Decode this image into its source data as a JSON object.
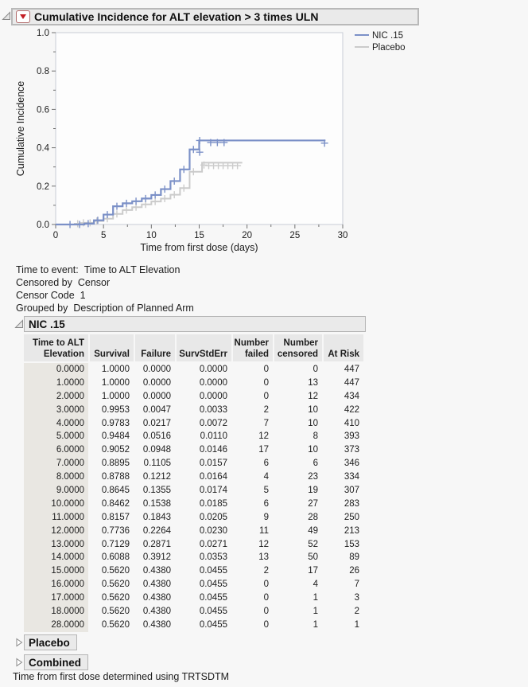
{
  "header": {
    "title": "Cumulative Incidence for ALT elevation > 3 times ULN"
  },
  "chart_data": {
    "type": "line",
    "subtype": "step-survival",
    "xlabel": "Time from first dose (days)",
    "ylabel": "Cumulative Incidence",
    "xlim": [
      0,
      30
    ],
    "ylim": [
      0.0,
      1.0
    ],
    "xticks": [
      0,
      5,
      10,
      15,
      20,
      25,
      30
    ],
    "yticks": [
      0.0,
      0.2,
      0.4,
      0.6,
      0.8,
      1.0
    ],
    "grid": false,
    "legend_position": "top-right",
    "series": [
      {
        "name": "Placebo",
        "color": "#cbcbcb",
        "width": 2,
        "step_points": [
          [
            0,
            0
          ],
          [
            2,
            0.004
          ],
          [
            3,
            0.009
          ],
          [
            4,
            0.018
          ],
          [
            5,
            0.03
          ],
          [
            6,
            0.055
          ],
          [
            7,
            0.075
          ],
          [
            8,
            0.09
          ],
          [
            9,
            0.105
          ],
          [
            10,
            0.12
          ],
          [
            11,
            0.135
          ],
          [
            12,
            0.155
          ],
          [
            13,
            0.19
          ],
          [
            14,
            0.275
          ],
          [
            15.3,
            0.322
          ],
          [
            19.5,
            0.322
          ]
        ],
        "censor_marks": [
          [
            2.3,
            0.004
          ],
          [
            2.9,
            0.009
          ],
          [
            3.6,
            0.009
          ],
          [
            4.3,
            0.018
          ],
          [
            5.4,
            0.03
          ],
          [
            6.4,
            0.055
          ],
          [
            7.4,
            0.075
          ],
          [
            8.4,
            0.09
          ],
          [
            9.4,
            0.105
          ],
          [
            10.4,
            0.12
          ],
          [
            11.4,
            0.135
          ],
          [
            12.4,
            0.155
          ],
          [
            13.4,
            0.19
          ],
          [
            14.4,
            0.275
          ],
          [
            15.5,
            0.31
          ],
          [
            16,
            0.307
          ],
          [
            16.5,
            0.307
          ],
          [
            17,
            0.307
          ],
          [
            17.5,
            0.307
          ],
          [
            18,
            0.307
          ],
          [
            18.5,
            0.307
          ],
          [
            19,
            0.307
          ]
        ]
      },
      {
        "name": "NIC .15",
        "color": "#7b90c7",
        "width": 2.2,
        "step_points": [
          [
            0,
            0
          ],
          [
            3,
            0.0047
          ],
          [
            4,
            0.0217
          ],
          [
            5,
            0.0516
          ],
          [
            6,
            0.0948
          ],
          [
            7,
            0.1105
          ],
          [
            8,
            0.1212
          ],
          [
            9,
            0.1355
          ],
          [
            10,
            0.1538
          ],
          [
            11,
            0.1843
          ],
          [
            12,
            0.2264
          ],
          [
            13,
            0.2871
          ],
          [
            14,
            0.3912
          ],
          [
            15,
            0.438
          ],
          [
            28.2,
            0.438
          ]
        ],
        "censor_marks": [
          [
            1.5,
            0
          ],
          [
            2.5,
            0
          ],
          [
            3.4,
            0.0047
          ],
          [
            4.4,
            0.0217
          ],
          [
            5.4,
            0.0516
          ],
          [
            6.4,
            0.0948
          ],
          [
            7.4,
            0.1105
          ],
          [
            8.4,
            0.1212
          ],
          [
            9.4,
            0.1355
          ],
          [
            10.4,
            0.1538
          ],
          [
            11.4,
            0.1843
          ],
          [
            12.4,
            0.2264
          ],
          [
            13.4,
            0.2871
          ],
          [
            14.4,
            0.3912
          ],
          [
            15.05,
            0.438
          ],
          [
            15.05,
            0.377
          ],
          [
            16.2,
            0.427
          ],
          [
            16.9,
            0.427
          ],
          [
            17.6,
            0.427
          ],
          [
            28.1,
            0.424
          ]
        ]
      }
    ],
    "legend": [
      "NIC .15",
      "Placebo"
    ]
  },
  "info": {
    "lines": [
      {
        "label": "Time to event:",
        "value": "Time to ALT Elevation"
      },
      {
        "label": "Censored by",
        "value": "Censor"
      },
      {
        "label": "Censor Code",
        "value": "1"
      },
      {
        "label": "Grouped by",
        "value": "Description of Planned Arm"
      }
    ]
  },
  "nic_section": {
    "title": "NIC .15",
    "table": {
      "columns": [
        {
          "line1": "Time to ALT",
          "line2": "Elevation"
        },
        {
          "line1": "",
          "line2": "Survival"
        },
        {
          "line1": "",
          "line2": "Failure"
        },
        {
          "line1": "",
          "line2": "SurvStdErr"
        },
        {
          "line1": "Number",
          "line2": "failed"
        },
        {
          "line1": "Number",
          "line2": "censored"
        },
        {
          "line1": "",
          "line2": "At Risk"
        }
      ],
      "rows": [
        [
          "0.0000",
          "1.0000",
          "0.0000",
          "0.0000",
          "0",
          "0",
          "447"
        ],
        [
          "1.0000",
          "1.0000",
          "0.0000",
          "0.0000",
          "0",
          "13",
          "447"
        ],
        [
          "2.0000",
          "1.0000",
          "0.0000",
          "0.0000",
          "0",
          "12",
          "434"
        ],
        [
          "3.0000",
          "0.9953",
          "0.0047",
          "0.0033",
          "2",
          "10",
          "422"
        ],
        [
          "4.0000",
          "0.9783",
          "0.0217",
          "0.0072",
          "7",
          "10",
          "410"
        ],
        [
          "5.0000",
          "0.9484",
          "0.0516",
          "0.0110",
          "12",
          "8",
          "393"
        ],
        [
          "6.0000",
          "0.9052",
          "0.0948",
          "0.0146",
          "17",
          "10",
          "373"
        ],
        [
          "7.0000",
          "0.8895",
          "0.1105",
          "0.0157",
          "6",
          "6",
          "346"
        ],
        [
          "8.0000",
          "0.8788",
          "0.1212",
          "0.0164",
          "4",
          "23",
          "334"
        ],
        [
          "9.0000",
          "0.8645",
          "0.1355",
          "0.0174",
          "5",
          "19",
          "307"
        ],
        [
          "10.0000",
          "0.8462",
          "0.1538",
          "0.0185",
          "6",
          "27",
          "283"
        ],
        [
          "11.0000",
          "0.8157",
          "0.1843",
          "0.0205",
          "9",
          "28",
          "250"
        ],
        [
          "12.0000",
          "0.7736",
          "0.2264",
          "0.0230",
          "11",
          "49",
          "213"
        ],
        [
          "13.0000",
          "0.7129",
          "0.2871",
          "0.0271",
          "12",
          "52",
          "153"
        ],
        [
          "14.0000",
          "0.6088",
          "0.3912",
          "0.0353",
          "13",
          "50",
          "89"
        ],
        [
          "15.0000",
          "0.5620",
          "0.4380",
          "0.0455",
          "2",
          "17",
          "26"
        ],
        [
          "16.0000",
          "0.5620",
          "0.4380",
          "0.0455",
          "0",
          "4",
          "7"
        ],
        [
          "17.0000",
          "0.5620",
          "0.4380",
          "0.0455",
          "0",
          "1",
          "3"
        ],
        [
          "18.0000",
          "0.5620",
          "0.4380",
          "0.0455",
          "0",
          "1",
          "2"
        ],
        [
          "28.0000",
          "0.5620",
          "0.4380",
          "0.0455",
          "0",
          "1",
          "1"
        ]
      ]
    }
  },
  "collapsed_sections": [
    {
      "title": "Placebo"
    },
    {
      "title": "Combined"
    }
  ],
  "footer": {
    "note": "Time from first dose determined using TRTSDTM"
  },
  "colors": {
    "accent_red": "#c41e25",
    "frame": "#c8cdd6",
    "tick": "#707070",
    "text": "#1c1c1c"
  }
}
